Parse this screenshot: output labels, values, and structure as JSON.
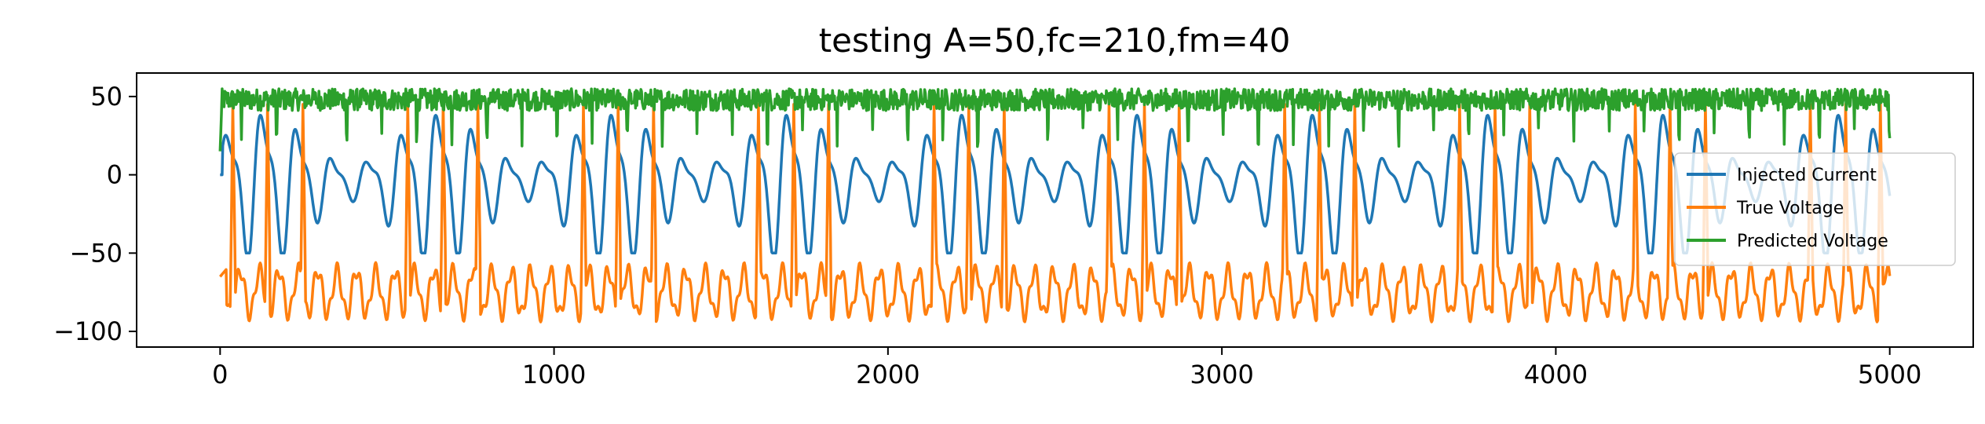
{
  "chart_data": {
    "type": "line",
    "title": "testing A=50,fc=210,fm=40",
    "xlabel": "",
    "ylabel": "",
    "xlim": [
      -250,
      5250
    ],
    "ylim": [
      -110,
      65
    ],
    "x_ticks": [
      0,
      1000,
      2000,
      3000,
      4000,
      5000
    ],
    "x_tick_labels": [
      "0",
      "1000",
      "2000",
      "3000",
      "4000",
      "5000"
    ],
    "y_ticks": [
      50,
      0,
      -50,
      -100
    ],
    "y_tick_labels": [
      "50",
      "0",
      "−50",
      "−100"
    ],
    "grid": false,
    "legend_position": "center-right",
    "x_range": [
      0,
      5000
    ],
    "series": [
      {
        "name": "Injected Current",
        "color": "#1f77b4",
        "signal": "am-modulated",
        "amplitude": 50,
        "carrier_period": 105,
        "modulation_period": 525,
        "min": -50,
        "max": 38
      },
      {
        "name": "True Voltage",
        "color": "#ff7f0e",
        "signal": "spiking",
        "resting_min": -100,
        "resting_max": -55,
        "spike_peak": 45
      },
      {
        "name": "Predicted Voltage",
        "color": "#2ca02c",
        "signal": "noisy-high",
        "baseline": 48,
        "min": 15,
        "max": 57
      }
    ]
  }
}
